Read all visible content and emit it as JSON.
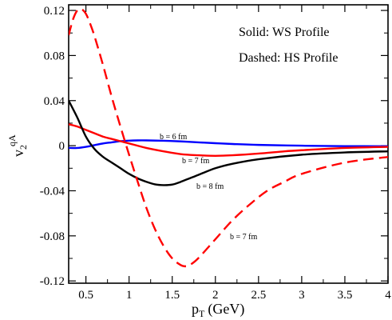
{
  "chart_data": {
    "type": "line",
    "xlabel": "p",
    "xlabel_sub": "T",
    "xlabel_unit": "(GeV)",
    "ylabel": "v",
    "ylabel_sub": "2",
    "ylabel_sup": "qA",
    "xlim": [
      0.3,
      4.0
    ],
    "ylim": [
      -0.122,
      0.125
    ],
    "x_ticks": [
      0.5,
      1,
      1.5,
      2,
      2.5,
      3,
      3.5,
      4
    ],
    "x_tick_labels": [
      "0.5",
      "1",
      "1.5",
      "2",
      "2.5",
      "3",
      "3.5",
      "4"
    ],
    "y_ticks": [
      0.12,
      0.08,
      0.04,
      0,
      -0.04,
      -0.08,
      -0.12
    ],
    "y_tick_labels": [
      "0.12",
      "0.08",
      "0.04",
      "0",
      "-0.04",
      "-0.08",
      "-0.12"
    ],
    "grid": false,
    "annotations": [
      {
        "text": "Solid: WS Profile"
      },
      {
        "text": "Dashed: HS Profile"
      }
    ],
    "curve_labels": [
      {
        "text": "b = 6 fm"
      },
      {
        "text": "b = 7 fm"
      },
      {
        "text": "b = 8 fm"
      },
      {
        "text": "b = 7 fm"
      }
    ],
    "series": [
      {
        "color": "#0000ff",
        "style": "solid",
        "x": [
          0.3,
          0.4,
          0.5,
          0.6,
          0.7,
          0.8,
          0.9,
          1.0,
          1.1,
          1.2,
          1.4,
          1.6,
          1.8,
          2.0,
          2.2,
          2.5,
          3.0,
          3.5,
          4.0
        ],
        "y": [
          -0.002,
          -0.002,
          -0.001,
          0.0005,
          0.002,
          0.003,
          0.004,
          0.0045,
          0.0047,
          0.0047,
          0.0044,
          0.0038,
          0.003,
          0.0022,
          0.0015,
          0.0007,
          0.0,
          -0.0004,
          -0.0005
        ]
      },
      {
        "color": "#ff0000",
        "style": "solid",
        "x": [
          0.3,
          0.4,
          0.5,
          0.6,
          0.7,
          0.8,
          0.9,
          1.0,
          1.2,
          1.4,
          1.6,
          1.8,
          2.0,
          2.2,
          2.5,
          2.8,
          3.0,
          3.5,
          4.0
        ],
        "y": [
          0.019,
          0.017,
          0.014,
          0.011,
          0.008,
          0.006,
          0.004,
          0.002,
          -0.002,
          -0.005,
          -0.0075,
          -0.0085,
          -0.009,
          -0.0085,
          -0.007,
          -0.005,
          -0.004,
          -0.002,
          -0.001
        ]
      },
      {
        "color": "#000000",
        "style": "solid",
        "x": [
          0.3,
          0.4,
          0.5,
          0.6,
          0.7,
          0.8,
          0.9,
          1.0,
          1.1,
          1.2,
          1.3,
          1.4,
          1.5,
          1.6,
          1.8,
          2.0,
          2.2,
          2.5,
          3.0,
          3.5,
          4.0
        ],
        "y": [
          0.04,
          0.025,
          0.008,
          -0.003,
          -0.01,
          -0.015,
          -0.02,
          -0.025,
          -0.029,
          -0.032,
          -0.0343,
          -0.035,
          -0.0345,
          -0.032,
          -0.026,
          -0.02,
          -0.016,
          -0.012,
          -0.008,
          -0.006,
          -0.005
        ]
      },
      {
        "color": "#ff0000",
        "style": "dashed",
        "x": [
          0.3,
          0.35,
          0.4,
          0.45,
          0.5,
          0.55,
          0.6,
          0.7,
          0.8,
          0.9,
          1.0,
          1.1,
          1.2,
          1.3,
          1.4,
          1.5,
          1.6,
          1.65,
          1.7,
          1.8,
          2.0,
          2.2,
          2.4,
          2.6,
          2.8,
          3.0,
          3.5,
          4.0
        ],
        "y": [
          0.098,
          0.112,
          0.12,
          0.121,
          0.117,
          0.108,
          0.097,
          0.071,
          0.043,
          0.017,
          -0.008,
          -0.032,
          -0.055,
          -0.074,
          -0.089,
          -0.1,
          -0.106,
          -0.107,
          -0.106,
          -0.1,
          -0.083,
          -0.066,
          -0.052,
          -0.04,
          -0.032,
          -0.025,
          -0.015,
          -0.01
        ]
      }
    ]
  }
}
